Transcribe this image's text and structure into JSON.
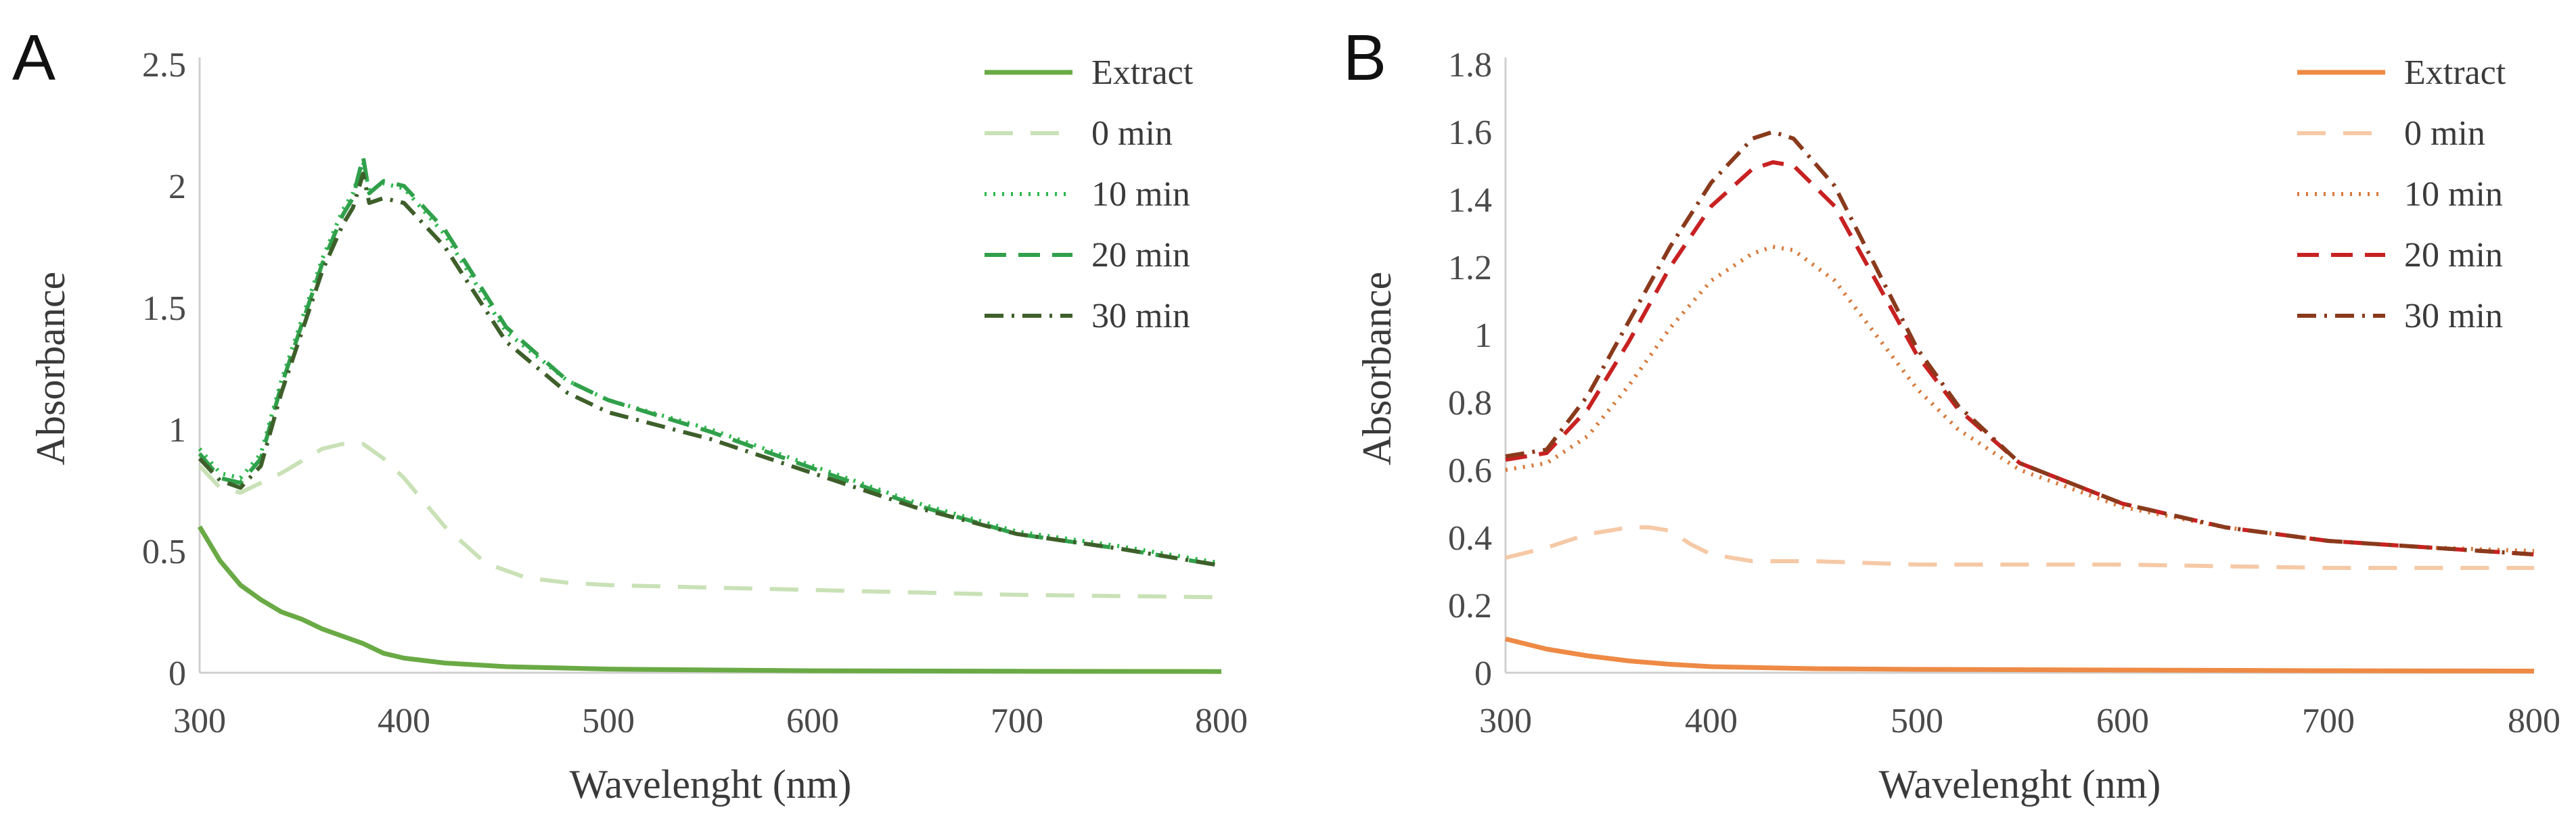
{
  "chart_data": [
    {
      "type": "line",
      "panel": "A",
      "xlabel": "Wavelenght (nm)",
      "ylabel": "Absorbance",
      "xlim": [
        300,
        800
      ],
      "ylim": [
        0,
        2.5
      ],
      "x_ticks": [
        "300",
        "400",
        "500",
        "600",
        "700",
        "800"
      ],
      "y_ticks": [
        "0",
        "0.5",
        "1",
        "1.5",
        "2",
        "2.5"
      ],
      "grid": false,
      "legend": "top-right",
      "series": [
        {
          "name": "Extract",
          "color": "#6aaa45",
          "dash": "solid",
          "x": [
            300,
            310,
            320,
            330,
            340,
            350,
            360,
            370,
            380,
            390,
            400,
            420,
            450,
            500,
            600,
            700,
            800
          ],
          "y": [
            0.6,
            0.46,
            0.36,
            0.3,
            0.25,
            0.22,
            0.18,
            0.15,
            0.12,
            0.08,
            0.06,
            0.04,
            0.025,
            0.015,
            0.008,
            0.006,
            0.005
          ]
        },
        {
          "name": "0 min",
          "color": "#c9e1b6",
          "dash": "long-dash",
          "x": [
            300,
            310,
            320,
            340,
            360,
            370,
            380,
            390,
            400,
            410,
            420,
            440,
            460,
            480,
            500,
            550,
            600,
            700,
            800
          ],
          "y": [
            0.85,
            0.76,
            0.74,
            0.82,
            0.92,
            0.94,
            0.94,
            0.88,
            0.8,
            0.7,
            0.6,
            0.45,
            0.39,
            0.37,
            0.36,
            0.35,
            0.34,
            0.32,
            0.31
          ]
        },
        {
          "name": "10 min",
          "color": "#2db84d",
          "dash": "dotted",
          "x": [
            300,
            310,
            320,
            330,
            340,
            350,
            360,
            370,
            375,
            380,
            383,
            390,
            400,
            420,
            450,
            480,
            500,
            550,
            600,
            650,
            700,
            750,
            800
          ],
          "y": [
            0.92,
            0.82,
            0.8,
            0.9,
            1.2,
            1.45,
            1.7,
            1.9,
            1.97,
            2.1,
            1.98,
            2.01,
            1.99,
            1.8,
            1.4,
            1.2,
            1.12,
            1.0,
            0.85,
            0.7,
            0.58,
            0.52,
            0.45
          ]
        },
        {
          "name": "20 min",
          "color": "#30a04a",
          "dash": "dash",
          "x": [
            300,
            310,
            320,
            330,
            340,
            350,
            360,
            370,
            375,
            380,
            383,
            390,
            400,
            420,
            450,
            480,
            500,
            550,
            600,
            650,
            700,
            750,
            800
          ],
          "y": [
            0.9,
            0.8,
            0.78,
            0.88,
            1.18,
            1.43,
            1.68,
            1.88,
            1.95,
            2.12,
            1.97,
            2.02,
            2.0,
            1.82,
            1.42,
            1.2,
            1.12,
            0.99,
            0.84,
            0.69,
            0.57,
            0.51,
            0.44
          ]
        },
        {
          "name": "30 min",
          "color": "#3e5f2a",
          "dash": "dash-dot",
          "x": [
            300,
            310,
            320,
            330,
            340,
            350,
            360,
            370,
            375,
            380,
            383,
            390,
            400,
            420,
            450,
            480,
            500,
            550,
            600,
            650,
            700,
            750,
            800
          ],
          "y": [
            0.88,
            0.79,
            0.76,
            0.85,
            1.15,
            1.4,
            1.65,
            1.84,
            1.91,
            2.05,
            1.93,
            1.95,
            1.93,
            1.75,
            1.36,
            1.15,
            1.07,
            0.96,
            0.82,
            0.68,
            0.57,
            0.51,
            0.44
          ]
        }
      ]
    },
    {
      "type": "line",
      "panel": "B",
      "xlabel": "Wavelenght (nm)",
      "ylabel": "Absorbance",
      "xlim": [
        300,
        800
      ],
      "ylim": [
        0,
        1.8
      ],
      "x_ticks": [
        "300",
        "400",
        "500",
        "600",
        "700",
        "800"
      ],
      "y_ticks": [
        "0",
        "0.2",
        "0.4",
        "0.6",
        "0.8",
        "1",
        "1.2",
        "1.4",
        "1.6",
        "1.8"
      ],
      "grid": false,
      "legend": "top-right",
      "series": [
        {
          "name": "Extract",
          "color": "#ee8a45",
          "dash": "solid",
          "x": [
            300,
            320,
            340,
            360,
            380,
            400,
            450,
            500,
            600,
            700,
            800
          ],
          "y": [
            0.1,
            0.07,
            0.05,
            0.035,
            0.025,
            0.018,
            0.012,
            0.01,
            0.008,
            0.006,
            0.005
          ]
        },
        {
          "name": "0 min",
          "color": "#f6c9a6",
          "dash": "long-dash",
          "x": [
            300,
            320,
            340,
            360,
            370,
            380,
            390,
            400,
            420,
            450,
            500,
            600,
            700,
            800
          ],
          "y": [
            0.34,
            0.37,
            0.41,
            0.43,
            0.43,
            0.42,
            0.38,
            0.35,
            0.33,
            0.33,
            0.32,
            0.32,
            0.31,
            0.31
          ]
        },
        {
          "name": "10 min",
          "color": "#d77a3c",
          "dash": "dotted",
          "x": [
            300,
            320,
            340,
            360,
            380,
            400,
            420,
            430,
            440,
            460,
            480,
            500,
            520,
            550,
            600,
            650,
            700,
            750,
            800
          ],
          "y": [
            0.6,
            0.62,
            0.7,
            0.85,
            1.02,
            1.16,
            1.24,
            1.26,
            1.25,
            1.16,
            1.0,
            0.84,
            0.72,
            0.6,
            0.49,
            0.43,
            0.39,
            0.37,
            0.36
          ]
        },
        {
          "name": "20 min",
          "color": "#c82121",
          "dash": "dash",
          "x": [
            300,
            320,
            340,
            360,
            380,
            400,
            420,
            430,
            440,
            460,
            480,
            500,
            520,
            550,
            600,
            650,
            700,
            750,
            800
          ],
          "y": [
            0.63,
            0.65,
            0.78,
            0.98,
            1.2,
            1.38,
            1.49,
            1.51,
            1.5,
            1.38,
            1.16,
            0.94,
            0.78,
            0.62,
            0.5,
            0.43,
            0.39,
            0.37,
            0.35
          ]
        },
        {
          "name": "30 min",
          "color": "#8a3a1c",
          "dash": "dash-dot",
          "x": [
            300,
            320,
            340,
            360,
            380,
            400,
            420,
            430,
            440,
            460,
            480,
            500,
            520,
            550,
            600,
            650,
            700,
            750,
            800
          ],
          "y": [
            0.64,
            0.66,
            0.82,
            1.04,
            1.26,
            1.45,
            1.58,
            1.6,
            1.58,
            1.44,
            1.2,
            0.96,
            0.79,
            0.62,
            0.5,
            0.43,
            0.39,
            0.37,
            0.35
          ]
        }
      ]
    }
  ]
}
